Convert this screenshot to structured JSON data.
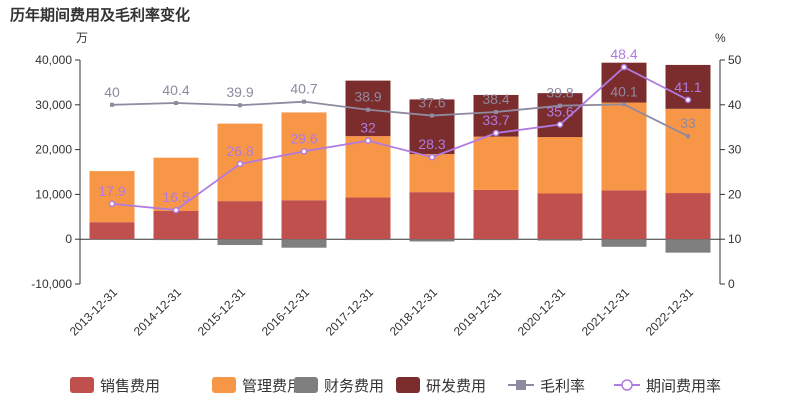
{
  "chart_data": {
    "type": "bar",
    "title": "历年期间费用及毛利率变化",
    "y_left_unit": "万",
    "y_right_unit": "%",
    "ylim_left": [
      -10000,
      40000
    ],
    "ylim_right": [
      0,
      50
    ],
    "y_left_ticks": [
      "40,000",
      "30,000",
      "20,000",
      "10,000",
      "0",
      "-10,000"
    ],
    "y_right_ticks": [
      "50",
      "40",
      "30",
      "20",
      "10",
      "0"
    ],
    "categories": [
      "2013-12-31",
      "2014-12-31",
      "2015-12-31",
      "2016-12-31",
      "2017-12-31",
      "2018-12-31",
      "2019-12-31",
      "2020-12-31",
      "2021-12-31",
      "2022-12-31"
    ],
    "series": [
      {
        "name": "销售费用",
        "type": "bar",
        "color": "#c0504d",
        "values": [
          3800,
          6300,
          8500,
          8700,
          9300,
          10500,
          11000,
          10200,
          10900,
          10300
        ]
      },
      {
        "name": "管理费用",
        "type": "bar",
        "color": "#f79646",
        "values": [
          11400,
          11900,
          17300,
          19600,
          13700,
          8500,
          11900,
          12600,
          19600,
          18800
        ]
      },
      {
        "name": "财务费用",
        "type": "bar",
        "color": "#7f7f7f",
        "values": [
          -100,
          -200,
          -1300,
          -1900,
          -200,
          -500,
          -200,
          -300,
          -1700,
          -3000
        ]
      },
      {
        "name": "研发费用",
        "type": "bar",
        "color": "#7b2c2c",
        "values": [
          0,
          0,
          0,
          0,
          12400,
          12200,
          9300,
          9800,
          8900,
          9800
        ]
      },
      {
        "name": "毛利率",
        "type": "line",
        "axis": "right",
        "color": "#8f8aa0",
        "values": [
          40,
          40.4,
          39.9,
          40.7,
          38.9,
          37.6,
          38.4,
          39.8,
          40.1,
          33
        ]
      },
      {
        "name": "期间费用率",
        "type": "line",
        "axis": "right",
        "color": "#b07be0",
        "values": [
          17.9,
          16.5,
          26.8,
          29.6,
          32,
          28.3,
          33.7,
          35.6,
          48.4,
          41.1
        ]
      }
    ],
    "legend_position": "bottom",
    "grid": false
  }
}
